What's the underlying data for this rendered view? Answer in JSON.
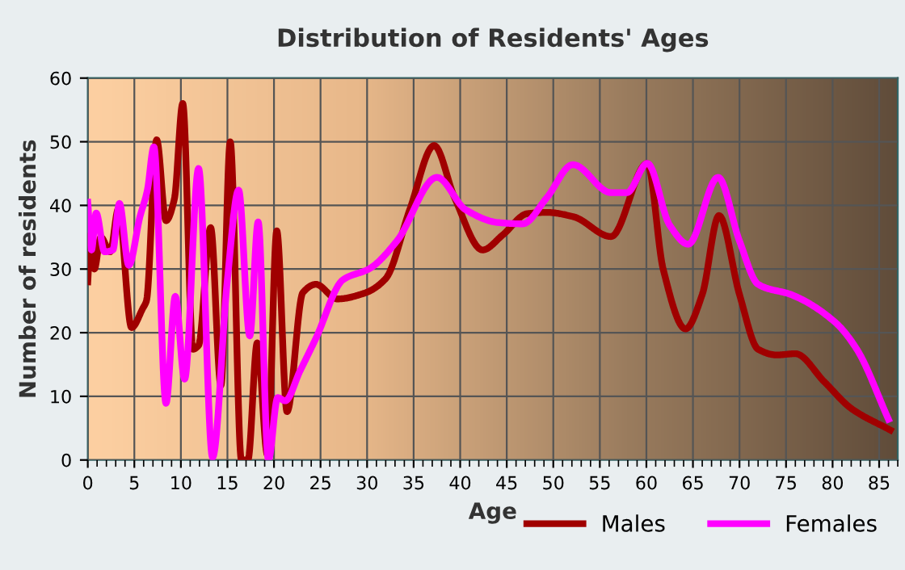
{
  "chart_data": {
    "type": "line",
    "title": "Distribution of Residents' Ages",
    "xlabel": "Age",
    "ylabel": "Number of residents",
    "xlim": [
      0,
      87
    ],
    "xticks": [
      0,
      5,
      10,
      15,
      20,
      25,
      30,
      35,
      40,
      45,
      50,
      55,
      60,
      65,
      70,
      75,
      80,
      85
    ],
    "ylim": [
      0,
      60
    ],
    "yticks": [
      0,
      10,
      20,
      30,
      40,
      50,
      60
    ],
    "grid": true,
    "legend": "bottom right",
    "marker": "none",
    "line_style": "solid",
    "series": [
      {
        "name": "Males",
        "color": "#a00000",
        "x": [
          0,
          0.3,
          0.7,
          1.4,
          2.4,
          3.3,
          4.7,
          5.9,
          6.3,
          7.4,
          8.4,
          9.3,
          10.2,
          11.3,
          11.9,
          13.2,
          14.3,
          15.3,
          16.5,
          17.2,
          18.2,
          19.3,
          20.3,
          21.4,
          23.1,
          24.5,
          26.8,
          29.7,
          32,
          34.6,
          37.2,
          39.4,
          42.4,
          44.6,
          47.2,
          49.3,
          52.2,
          56.2,
          60.1,
          61.8,
          64.2,
          66,
          67.8,
          70,
          72,
          74,
          76,
          79.1,
          82,
          86.2
        ],
        "values": [
          28,
          35.4,
          30,
          35,
          32.7,
          39.5,
          20.8,
          23.8,
          25,
          50.3,
          37.6,
          41,
          56,
          17.4,
          18,
          36.5,
          11.7,
          50,
          0,
          0,
          18.4,
          0.8,
          36,
          7.6,
          26.3,
          27.6,
          25.3,
          26.2,
          28.5,
          39.4,
          49.4,
          41.2,
          33,
          35.4,
          38.7,
          38.9,
          38.2,
          35.1,
          46.6,
          30,
          20.6,
          26,
          38.4,
          26,
          17.4,
          16.5,
          16.7,
          12.3,
          8.1,
          4.7
        ]
      },
      {
        "name": "Females",
        "color": "#ff00ff",
        "x": [
          0,
          0.4,
          0.9,
          1.8,
          2.7,
          3.4,
          4.4,
          5.6,
          6.4,
          7.1,
          8.4,
          9.4,
          10.4,
          11.9,
          13.4,
          15,
          16.2,
          17.4,
          18.3,
          19.4,
          20.4,
          21.2,
          22.8,
          24.5,
          27.4,
          30.3,
          33.2,
          37.5,
          40.6,
          44.1,
          46.7,
          49.3,
          52.1,
          56.2,
          57.9,
          60.1,
          62.5,
          64.5,
          67.7,
          70,
          72,
          75.7,
          80.3,
          82.6,
          86
        ],
        "values": [
          40.5,
          33,
          38.8,
          32.7,
          33,
          40.3,
          30.6,
          38.2,
          42.4,
          49.2,
          8.9,
          25.7,
          12.7,
          45.8,
          0.4,
          28.4,
          42.4,
          19.5,
          37.4,
          0,
          9.8,
          9.3,
          14,
          19.1,
          28.3,
          30.1,
          34.4,
          44.4,
          39.3,
          37.3,
          37.1,
          41.2,
          46.4,
          42,
          42,
          46.6,
          36.9,
          33.9,
          44.4,
          34.4,
          27.6,
          25.9,
          21.6,
          17.4,
          6.4
        ]
      }
    ]
  }
}
